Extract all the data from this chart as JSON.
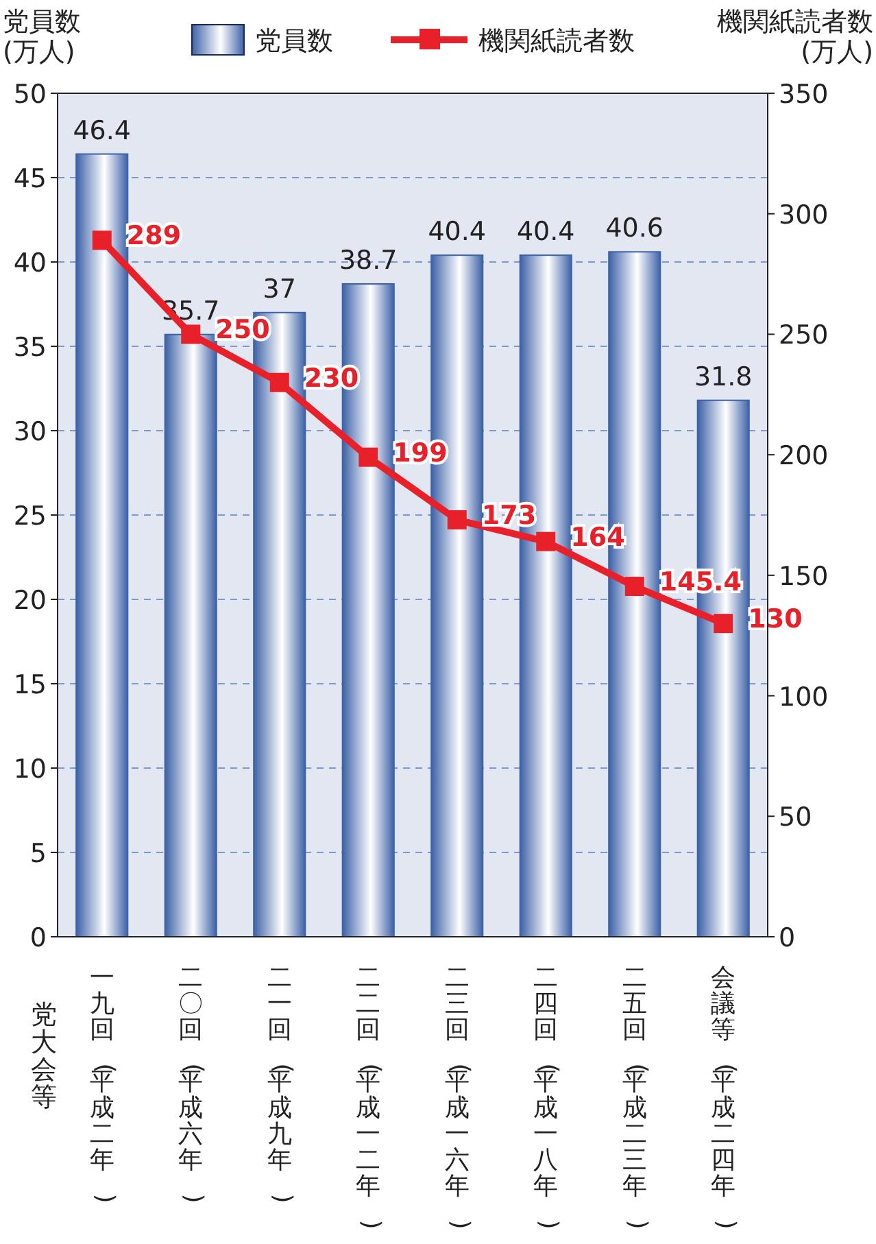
{
  "chart_data": {
    "type": "bar",
    "categories": [
      "一九回(平成二年)",
      "二〇回(平成六年)",
      "二一回(平成九年)",
      "二二回(平成一二年)",
      "二三回(平成一六年)",
      "二四回(平成一八年)",
      "二五回(平成二三年)",
      "会議等(平成二四年)"
    ],
    "xlabel": "党大会等",
    "ylabel": "党員数\n(万人)",
    "y2label": "機関紙読者数\n(万人)",
    "series": [
      {
        "name": "党員数",
        "color": "#3d62a8",
        "values": [
          46.4,
          35.7,
          37,
          38.7,
          40.4,
          40.4,
          40.6,
          31.8
        ]
      },
      {
        "name": "機関紙読者数",
        "type": "line",
        "axis": "y2",
        "color": "#e8202a",
        "marker": "square",
        "values": [
          289,
          250,
          230,
          199,
          173,
          164,
          145.4,
          130
        ]
      }
    ],
    "ylim": [
      0,
      50
    ],
    "yticks": [
      0,
      5,
      10,
      15,
      20,
      25,
      30,
      35,
      40,
      45,
      50
    ],
    "y2lim": [
      0,
      350
    ],
    "y2ticks": [
      0,
      50,
      100,
      150,
      200,
      250,
      300,
      350
    ],
    "grid": "y",
    "legend": "top",
    "data_labels": true
  }
}
